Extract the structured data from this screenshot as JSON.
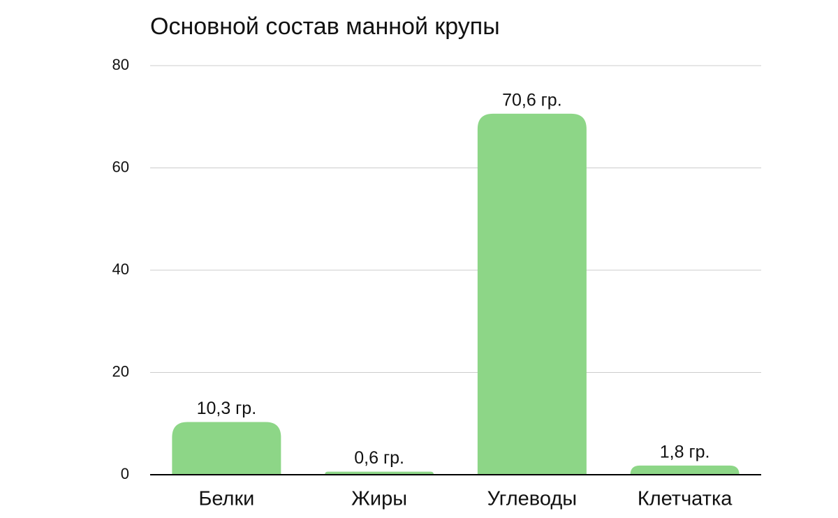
{
  "chart_data": {
    "type": "bar",
    "title": "Основной состав манной крупы",
    "categories": [
      "Белки",
      "Жиры",
      "Углеводы",
      "Клетчатка"
    ],
    "values": [
      10.3,
      0.6,
      70.6,
      1.8
    ],
    "value_labels": [
      "10,3 гр.",
      "0,6 гр.",
      "70,6 гр.",
      "1,8 гр."
    ],
    "color": "#8dd687",
    "ylim": [
      0,
      80
    ],
    "yticks": [
      0,
      20,
      40,
      60,
      80
    ],
    "grid": true
  }
}
